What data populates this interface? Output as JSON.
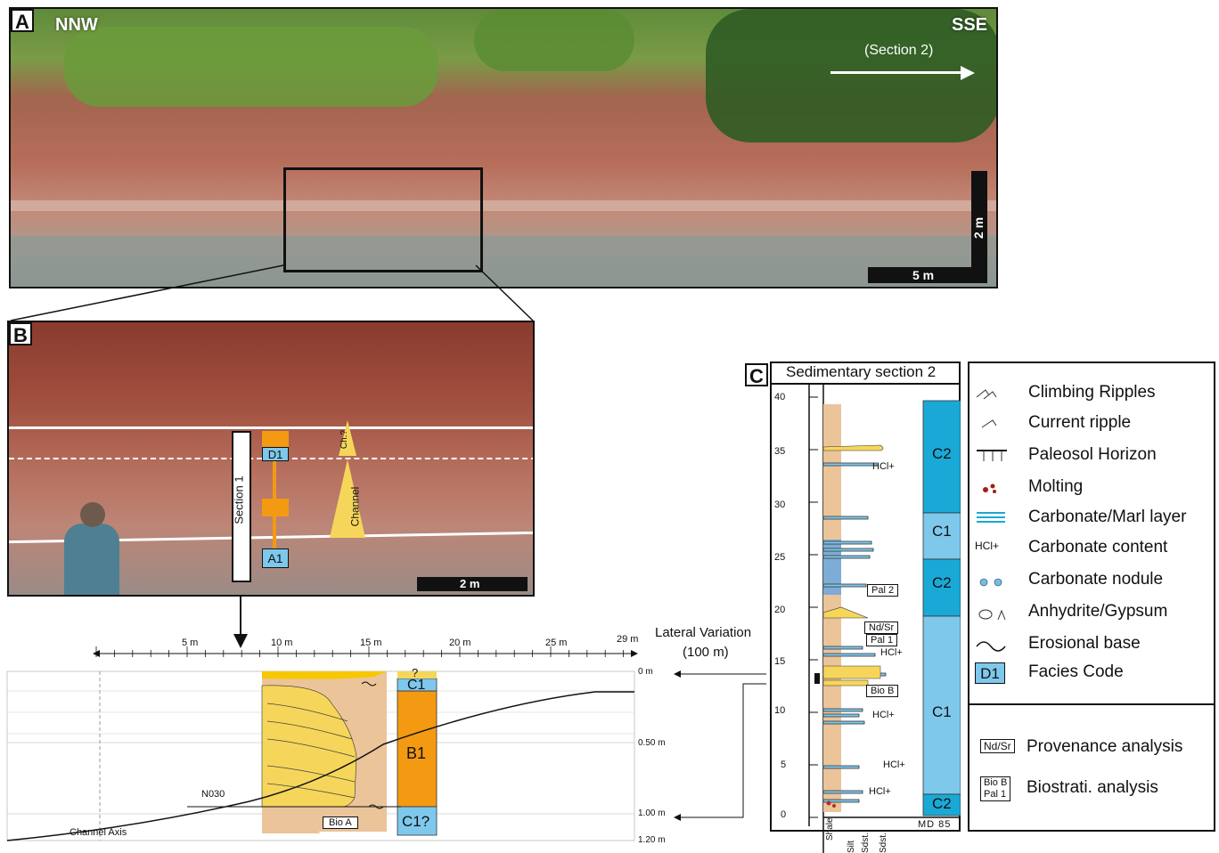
{
  "panel_a": {
    "letter": "A",
    "dir_left": "NNW",
    "dir_right": "SSE",
    "arrow_label": "(Section 2)",
    "scale_h": "5 m",
    "scale_v": "2 m"
  },
  "panel_b": {
    "letter": "B",
    "section_label": "Section 1",
    "facies_top": "D1",
    "facies_bottom": "A1",
    "channel_label": "Channel",
    "channel_top_label": "Ch.?",
    "scale": "2 m"
  },
  "panel_c": {
    "letter": "C",
    "title": "Sedimentary section 2",
    "y_ticks": [
      "40",
      "35",
      "30",
      "25",
      "20",
      "15",
      "10",
      "5",
      "0"
    ],
    "facies_blocks": [
      "C2",
      "C1",
      "C2",
      "C1",
      "C2"
    ],
    "site": "MD 85",
    "grain_labels": [
      "Shale",
      "Silt",
      "Sdst.",
      "Sdst."
    ],
    "hcl": [
      "HCl+",
      "HCl+",
      "HCl+",
      "HCl+",
      "HCl+"
    ],
    "boxes": [
      "Pal 2",
      "Nd/Sr",
      "Pal 1",
      "Bio B"
    ]
  },
  "lateral": {
    "title_line1": "Lateral Variation",
    "title_line2": "(100 m)",
    "x_ticks": [
      "5 m",
      "10 m",
      "15 m",
      "20 m",
      "25 m",
      "29 m"
    ],
    "depth_ticks": [
      "0 m",
      "0.50 m",
      "1.00 m",
      "1.20 m"
    ],
    "channel_axis": "Channel Axis",
    "bearing": "N030",
    "bio_box": "Bio A",
    "facies": [
      "?",
      "C1",
      "B1",
      "C1?"
    ]
  },
  "legend": {
    "items": [
      {
        "label": "Climbing Ripples",
        "icon": "climbing-ripples-icon"
      },
      {
        "label": "Current ripple",
        "icon": "current-ripple-icon"
      },
      {
        "label": "Paleosol Horizon",
        "icon": "paleosol-icon"
      },
      {
        "label": "Molting",
        "icon": "molting-icon"
      },
      {
        "label": "Carbonate/Marl layer",
        "icon": "carbonate-layer-icon"
      },
      {
        "label": "Carbonate content",
        "icon": "hcl-icon",
        "symbol": "HCl+"
      },
      {
        "label": "Carbonate nodule",
        "icon": "nodule-icon"
      },
      {
        "label": "Anhydrite/Gypsum",
        "icon": "anhydrite-icon"
      },
      {
        "label": "Erosional base",
        "icon": "erosional-base-icon"
      },
      {
        "label": "Facies Code",
        "icon": "facies-code-icon",
        "symbol": "D1"
      }
    ],
    "analysis": [
      {
        "symbol": "Nd/Sr",
        "label": "Provenance analysis"
      },
      {
        "symbol_line1": "Bio B",
        "symbol_line2": "Pal 1",
        "label": "Biostrati. analysis"
      }
    ]
  },
  "colors": {
    "light_blue": "#7ec8ec",
    "cyan": "#1aa9d6",
    "orange": "#f39a12",
    "yellow": "#f6d65a",
    "sand": "#ebc49a"
  }
}
